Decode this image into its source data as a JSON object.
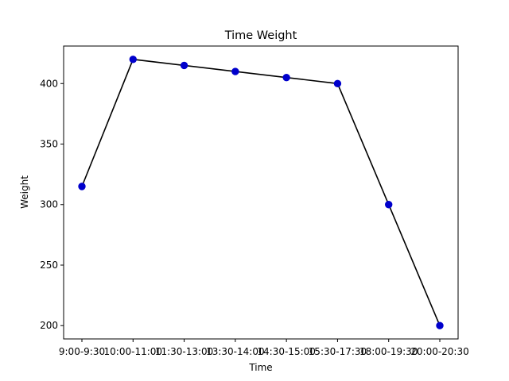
{
  "chart_data": {
    "type": "line",
    "title": "Time Weight",
    "xlabel": "Time",
    "ylabel": "Weight",
    "categories": [
      "9:00-9:30",
      "10:00-11:00",
      "11:30-13:00",
      "13:30-14:00",
      "14:30-15:00",
      "15:30-17:30",
      "18:00-19:30",
      "20:00-20:30"
    ],
    "series": [
      {
        "values": [
          315,
          420,
          415,
          410,
          405,
          400,
          300,
          200
        ]
      }
    ],
    "yticks": [
      200,
      250,
      300,
      350,
      400
    ],
    "ylim": [
      189,
      431
    ],
    "grid": false,
    "line_color": "#000000",
    "marker_color": "#0000cc"
  }
}
